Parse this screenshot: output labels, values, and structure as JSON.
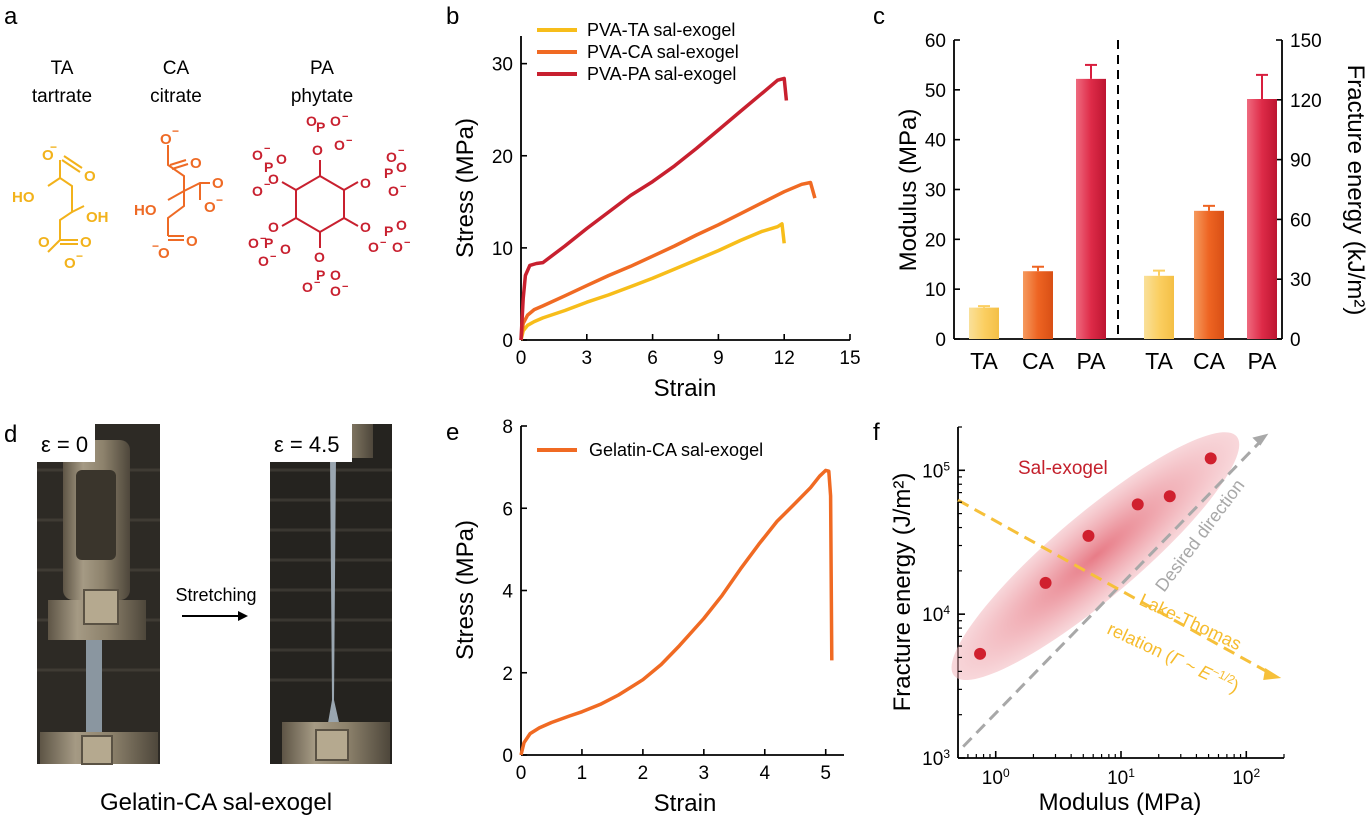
{
  "panels": {
    "a": "a",
    "b": "b",
    "c": "c",
    "d": "d",
    "e": "e",
    "f": "f"
  },
  "panel_a": {
    "items": [
      {
        "abbr": "TA",
        "name": "tartrate",
        "color": "#f2b21b"
      },
      {
        "abbr": "CA",
        "name": "citrate",
        "color": "#ee6a25"
      },
      {
        "abbr": "PA",
        "name": "phytate",
        "color": "#c8202f"
      }
    ]
  },
  "panel_d": {
    "strain_left": "ε = 0",
    "strain_right": "ε = 4.5",
    "arrow_label": "Stretching",
    "caption": "Gelatin-CA sal-exogel"
  },
  "chart_data": [
    {
      "id": "b",
      "type": "line",
      "xlabel": "Strain",
      "ylabel": "Stress (MPa)",
      "xlim": [
        0,
        15
      ],
      "ylim": [
        0,
        33
      ],
      "xticks": [
        0,
        3,
        6,
        9,
        12,
        15
      ],
      "yticks": [
        0,
        10,
        20,
        30
      ],
      "legend_position": "top-left",
      "series": [
        {
          "name": "PVA-TA sal-exogel",
          "color": "#f7bd1a",
          "points": [
            [
              0,
              0
            ],
            [
              0.1,
              1.0
            ],
            [
              0.3,
              1.6
            ],
            [
              0.6,
              2.0
            ],
            [
              1,
              2.4
            ],
            [
              2,
              3.2
            ],
            [
              3,
              4.1
            ],
            [
              4,
              4.9
            ],
            [
              5,
              5.8
            ],
            [
              6,
              6.7
            ],
            [
              7,
              7.7
            ],
            [
              8,
              8.7
            ],
            [
              9,
              9.7
            ],
            [
              10,
              10.8
            ],
            [
              11,
              11.8
            ],
            [
              11.7,
              12.3
            ],
            [
              11.9,
              12.6
            ],
            [
              12.0,
              10.5
            ]
          ]
        },
        {
          "name": "PVA-CA sal-exogel",
          "color": "#f06a23",
          "points": [
            [
              0,
              0
            ],
            [
              0.1,
              1.8
            ],
            [
              0.3,
              2.7
            ],
            [
              0.6,
              3.3
            ],
            [
              1,
              3.7
            ],
            [
              2,
              4.8
            ],
            [
              3,
              5.9
            ],
            [
              4,
              7.0
            ],
            [
              5,
              8.0
            ],
            [
              6,
              9.1
            ],
            [
              7,
              10.2
            ],
            [
              8,
              11.4
            ],
            [
              9,
              12.5
            ],
            [
              10,
              13.7
            ],
            [
              11,
              14.9
            ],
            [
              12,
              16.1
            ],
            [
              12.8,
              16.9
            ],
            [
              13.2,
              17.1
            ],
            [
              13.4,
              15.4
            ]
          ]
        },
        {
          "name": "PVA-PA sal-exogel",
          "color": "#c8202f",
          "points": [
            [
              0,
              0
            ],
            [
              0.1,
              4.5
            ],
            [
              0.2,
              7.0
            ],
            [
              0.4,
              8.1
            ],
            [
              0.7,
              8.3
            ],
            [
              1,
              8.4
            ],
            [
              2,
              10.2
            ],
            [
              3,
              12.1
            ],
            [
              4,
              13.9
            ],
            [
              5,
              15.7
            ],
            [
              6,
              17.2
            ],
            [
              7,
              18.9
            ],
            [
              8,
              20.8
            ],
            [
              9,
              22.8
            ],
            [
              10,
              24.8
            ],
            [
              11,
              26.8
            ],
            [
              11.7,
              28.2
            ],
            [
              12.0,
              28.4
            ],
            [
              12.1,
              26.0
            ]
          ]
        }
      ]
    },
    {
      "id": "c",
      "type": "bar",
      "categories": [
        "TA",
        "CA",
        "PA",
        "TA",
        "CA",
        "PA"
      ],
      "ylabel": "Modulus (MPa)",
      "ylabel_right": "Fracture energy (kJ/m²)",
      "ylim": [
        0,
        60
      ],
      "ylim_right": [
        0,
        150
      ],
      "yticks": [
        0,
        10,
        20,
        30,
        40,
        50,
        60
      ],
      "yticks_right": [
        0,
        30,
        60,
        90,
        120,
        150
      ],
      "modulus": {
        "values": [
          6.3,
          13.6,
          52.2
        ],
        "errors": [
          0.3,
          0.9,
          2.8
        ]
      },
      "fracture_energy": {
        "values": [
          31.7,
          64.3,
          120.4
        ],
        "errors": [
          2.6,
          2.5,
          12.1
        ]
      },
      "colors": [
        "#fbcf62",
        "#ee6422",
        "#d81e3e"
      ]
    },
    {
      "id": "e",
      "type": "line",
      "xlabel": "Strain",
      "ylabel": "Stress (MPa)",
      "xlim": [
        0,
        5.3
      ],
      "ylim": [
        0,
        8
      ],
      "xticks": [
        0,
        1,
        2,
        3,
        4,
        5
      ],
      "yticks": [
        0,
        2,
        4,
        6,
        8
      ],
      "legend_position": "top-left",
      "series": [
        {
          "name": "Gelatin-CA sal-exogel",
          "color": "#f06a23",
          "points": [
            [
              0,
              0
            ],
            [
              0.05,
              0.3
            ],
            [
              0.15,
              0.52
            ],
            [
              0.3,
              0.66
            ],
            [
              0.5,
              0.79
            ],
            [
              0.8,
              0.95
            ],
            [
              1.0,
              1.05
            ],
            [
              1.3,
              1.23
            ],
            [
              1.6,
              1.46
            ],
            [
              2.0,
              1.83
            ],
            [
              2.3,
              2.2
            ],
            [
              2.6,
              2.66
            ],
            [
              3.0,
              3.32
            ],
            [
              3.3,
              3.88
            ],
            [
              3.6,
              4.52
            ],
            [
              3.9,
              5.12
            ],
            [
              4.2,
              5.68
            ],
            [
              4.5,
              6.12
            ],
            [
              4.75,
              6.5
            ],
            [
              4.9,
              6.78
            ],
            [
              5.0,
              6.92
            ],
            [
              5.05,
              6.9
            ],
            [
              5.08,
              6.3
            ],
            [
              5.1,
              2.3
            ]
          ]
        }
      ]
    },
    {
      "id": "f",
      "type": "scatter",
      "xlabel": "Modulus (MPa)",
      "ylabel": "Fracture energy (J/m²)",
      "xscale": "log",
      "yscale": "log",
      "xlim": [
        0.5,
        200
      ],
      "ylim": [
        1000,
        200000
      ],
      "xticks": [
        {
          "v": 1,
          "base": "10",
          "exp": "0"
        },
        {
          "v": 10,
          "base": "10",
          "exp": "1"
        },
        {
          "v": 100,
          "base": "10",
          "exp": "2"
        }
      ],
      "yticks": [
        {
          "v": 1000,
          "base": "10",
          "exp": "3"
        },
        {
          "v": 10000,
          "base": "10",
          "exp": "4"
        },
        {
          "v": 100000,
          "base": "10",
          "exp": "5"
        }
      ],
      "series": [
        {
          "name": "Sal-exogel",
          "color": "#d0202e",
          "points": [
            [
              0.75,
              5300
            ],
            [
              2.5,
              16500
            ],
            [
              5.5,
              35000
            ],
            [
              13.6,
              58000
            ],
            [
              24.5,
              66000
            ],
            [
              52,
              121000
            ]
          ]
        }
      ],
      "annotations": {
        "sal_exogel": "Sal-exogel",
        "desired": "Desired direction",
        "lake_line1": "Lake-Thomas",
        "lake_line2_pre": "relation (",
        "lake_gamma": "Γ",
        "lake_tilde": " ~ ",
        "lake_E": "E",
        "lake_exp": "−1/2",
        "lake_close": ")"
      },
      "colors": {
        "ellipse": "#e46470",
        "desired": "#a8a8a8",
        "lake": "#f6c03a"
      }
    }
  ]
}
